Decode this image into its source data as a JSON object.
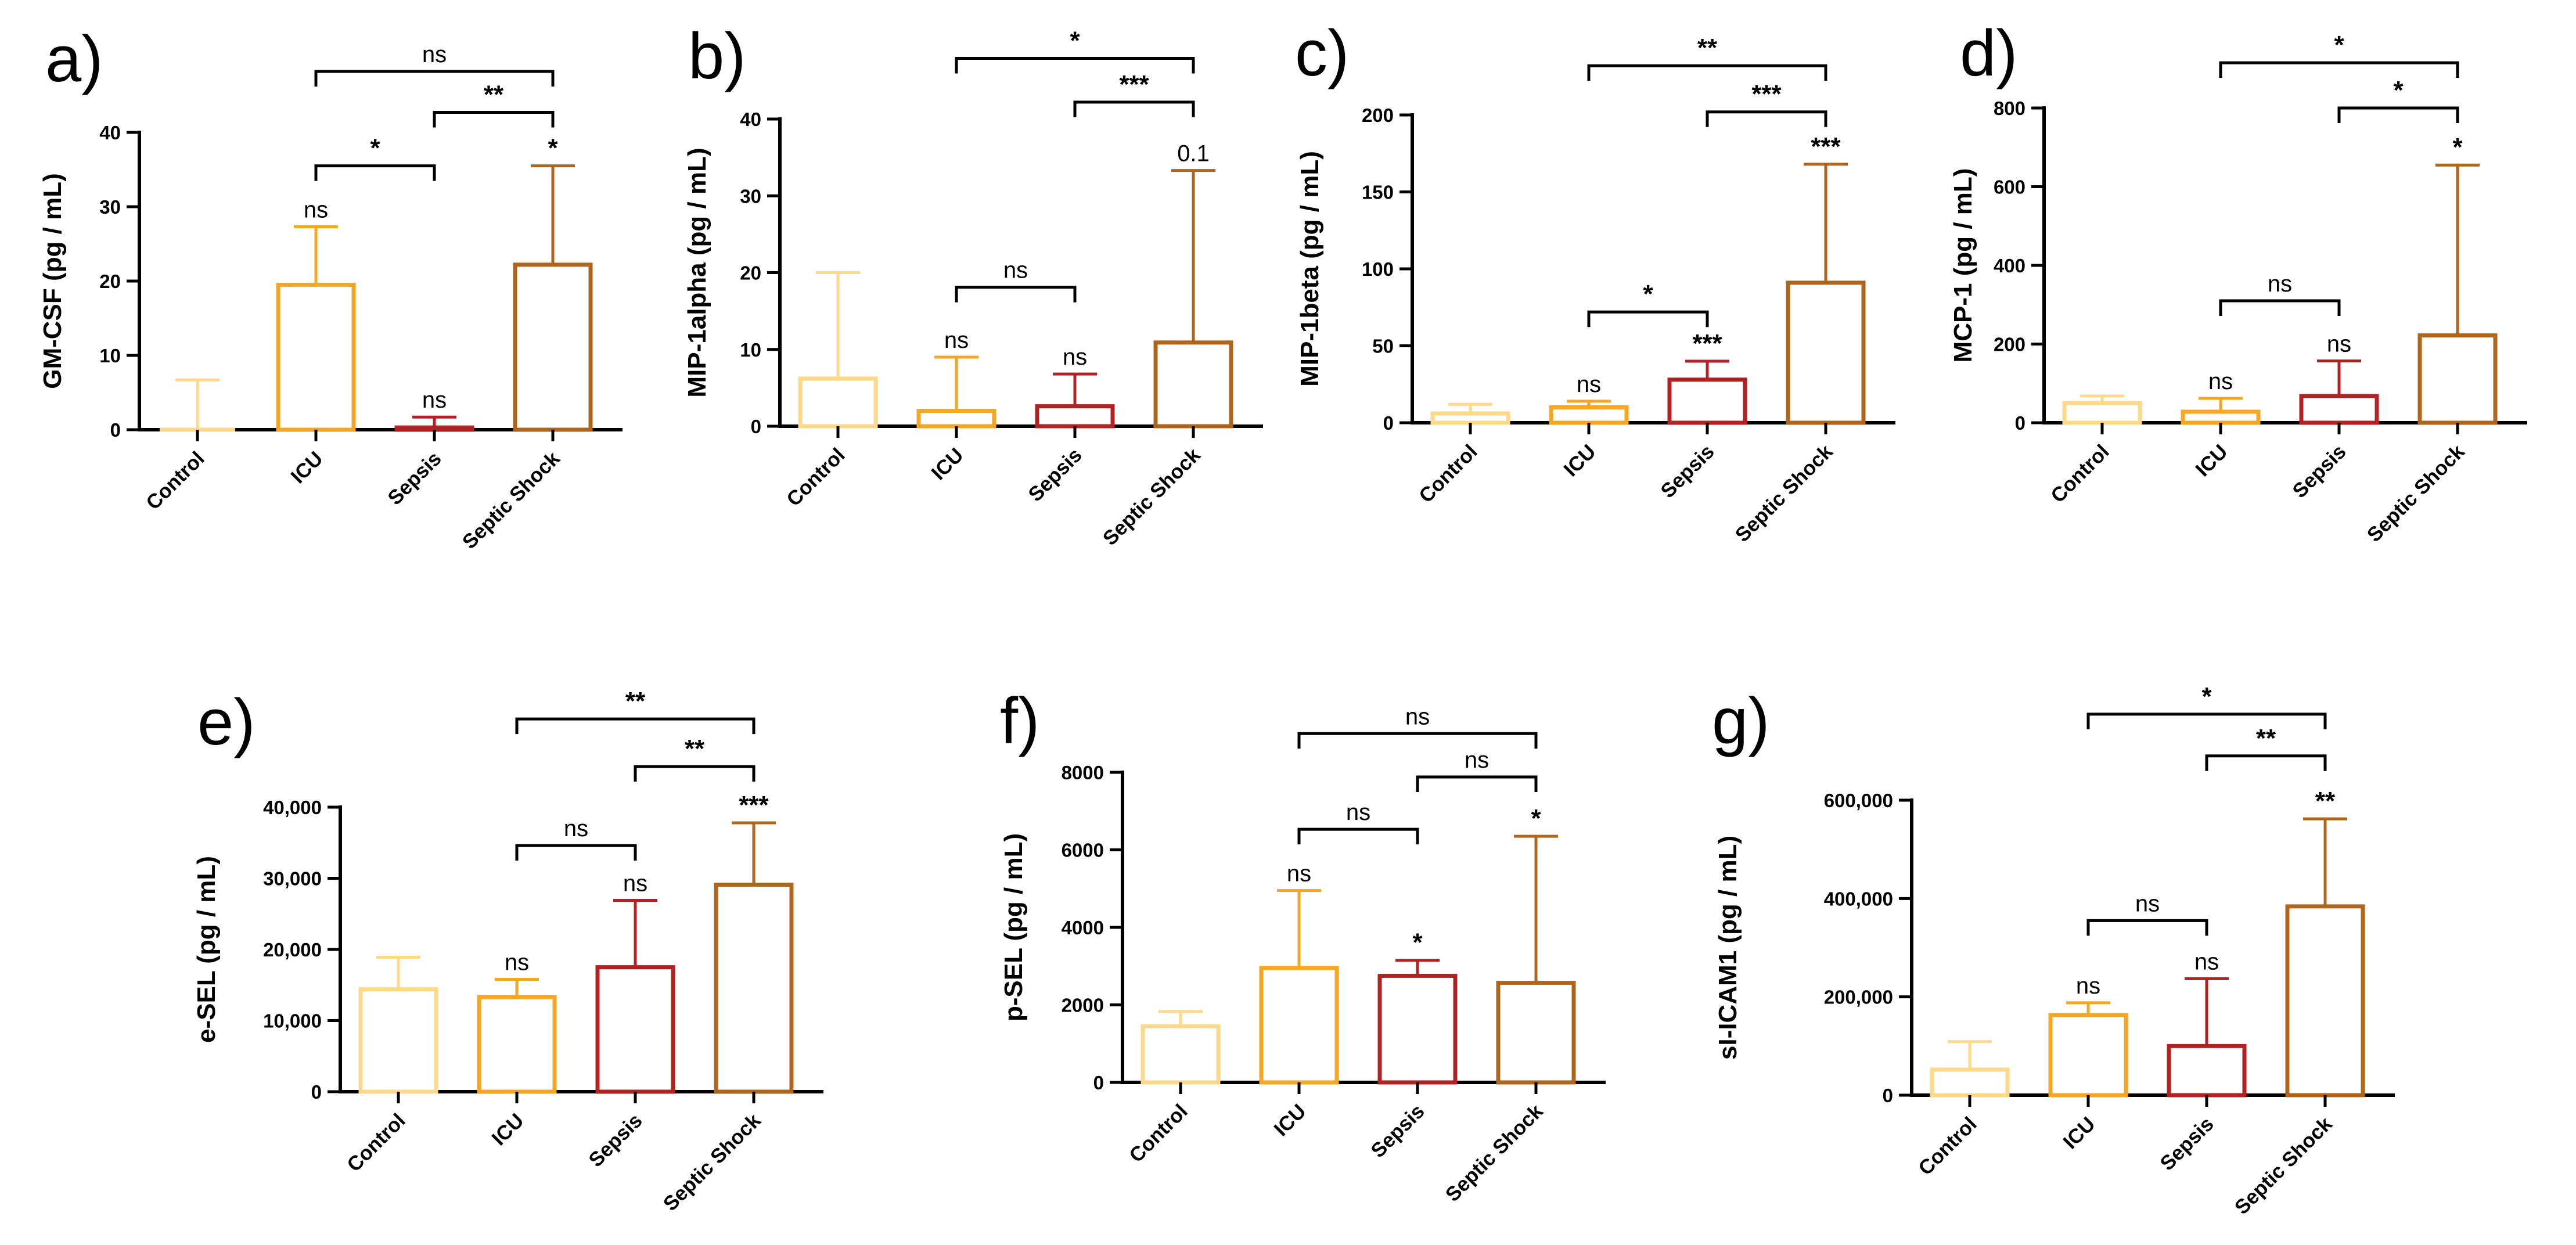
{
  "palette": {
    "Control": "#FFD98A",
    "ICU": "#F5A623",
    "Sepsis": "#B22222",
    "Septic Shock": "#B0651C"
  },
  "chart_data": [
    {
      "panel": "a)",
      "type": "bar",
      "ylabel": "GM-CSF (pg / mL)",
      "categories": [
        "Control",
        "ICU",
        "Sepsis",
        "Septic Shock"
      ],
      "values": [
        0,
        19.5,
        0.3,
        22.2
      ],
      "err": [
        6.7,
        27.3,
        1.7,
        35.5
      ],
      "ylim": [
        0,
        40
      ],
      "yticks": [
        0,
        10,
        20,
        30,
        40
      ],
      "tick_labels": [
        "0",
        "10",
        "20",
        "30",
        "40"
      ],
      "bar_labels": [
        "",
        "ns",
        "ns",
        "*"
      ],
      "brackets": [
        {
          "from": 1,
          "to": 2,
          "y": 35.5,
          "label": "*"
        },
        {
          "from": 2,
          "to": 3,
          "y": 42.7,
          "label": "**"
        },
        {
          "from": 1,
          "to": 3,
          "y": 48.2,
          "label": "ns"
        }
      ]
    },
    {
      "panel": "b)",
      "type": "bar",
      "ylabel": "MIP-1alpha (pg / mL)",
      "categories": [
        "Control",
        "ICU",
        "Sepsis",
        "Septic Shock"
      ],
      "values": [
        6.2,
        2.0,
        2.6,
        10.9
      ],
      "err": [
        20.0,
        9.0,
        6.8,
        33.3
      ],
      "ylim": [
        0,
        40
      ],
      "yticks": [
        0,
        10,
        20,
        30,
        40
      ],
      "tick_labels": [
        "0",
        "10",
        "20",
        "30",
        "40"
      ],
      "bar_labels": [
        "",
        "ns",
        "ns",
        "0.1"
      ],
      "brackets": [
        {
          "from": 1,
          "to": 2,
          "y": 18.1,
          "label": "ns"
        },
        {
          "from": 2,
          "to": 3,
          "y": 42.2,
          "label": "***"
        },
        {
          "from": 1,
          "to": 3,
          "y": 47.9,
          "label": "*"
        }
      ]
    },
    {
      "panel": "c)",
      "type": "bar",
      "ylabel": "MIP-1beta (pg / mL)",
      "categories": [
        "Control",
        "ICU",
        "Sepsis",
        "Septic Shock"
      ],
      "values": [
        6,
        10,
        28,
        91
      ],
      "err": [
        12,
        14,
        40,
        168
      ],
      "ylim": [
        0,
        200
      ],
      "yticks": [
        0,
        50,
        100,
        150,
        200
      ],
      "tick_labels": [
        "0",
        "50",
        "100",
        "150",
        "200"
      ],
      "bar_labels": [
        "",
        "ns",
        "***",
        "***"
      ],
      "brackets": [
        {
          "from": 1,
          "to": 2,
          "y": 72,
          "label": "*"
        },
        {
          "from": 2,
          "to": 3,
          "y": 202,
          "label": "***"
        },
        {
          "from": 1,
          "to": 3,
          "y": 232,
          "label": "**"
        }
      ]
    },
    {
      "panel": "d)",
      "type": "bar",
      "ylabel": "MCP-1 (pg / mL)",
      "categories": [
        "Control",
        "ICU",
        "Sepsis",
        "Septic Shock"
      ],
      "values": [
        50,
        28,
        68,
        222
      ],
      "err": [
        68,
        62,
        157,
        655
      ],
      "ylim": [
        0,
        800
      ],
      "yticks": [
        0,
        200,
        400,
        600,
        800
      ],
      "tick_labels": [
        "0",
        "200",
        "400",
        "600",
        "800"
      ],
      "bar_labels": [
        "",
        "ns",
        "ns",
        "*"
      ],
      "brackets": [
        {
          "from": 1,
          "to": 2,
          "y": 310,
          "label": "ns"
        },
        {
          "from": 2,
          "to": 3,
          "y": 800,
          "label": "*"
        },
        {
          "from": 1,
          "to": 3,
          "y": 915,
          "label": "*"
        }
      ]
    },
    {
      "panel": "e)",
      "type": "bar",
      "ylabel": "e-SEL (pg / mL)",
      "categories": [
        "Control",
        "ICU",
        "Sepsis",
        "Septic Shock"
      ],
      "values": [
        14400,
        13300,
        17500,
        29100
      ],
      "err": [
        18900,
        15800,
        26900,
        37800
      ],
      "ylim": [
        0,
        40000
      ],
      "yticks": [
        0,
        10000,
        20000,
        30000,
        40000
      ],
      "tick_labels": [
        "0",
        "10,000",
        "20,000",
        "30,000",
        "40,000"
      ],
      "bar_labels": [
        "",
        "ns",
        "ns",
        "***"
      ],
      "brackets": [
        {
          "from": 1,
          "to": 2,
          "y": 34600,
          "label": "ns"
        },
        {
          "from": 2,
          "to": 3,
          "y": 45700,
          "label": "**"
        },
        {
          "from": 1,
          "to": 3,
          "y": 52400,
          "label": "**"
        }
      ]
    },
    {
      "panel": "f)",
      "type": "bar",
      "ylabel": "p-SEL (pg / mL)",
      "categories": [
        "Control",
        "ICU",
        "Sepsis",
        "Septic Shock"
      ],
      "values": [
        1450,
        2950,
        2750,
        2570
      ],
      "err": [
        1830,
        4950,
        3150,
        6350
      ],
      "ylim": [
        0,
        8000
      ],
      "yticks": [
        0,
        2000,
        4000,
        6000,
        8000
      ],
      "tick_labels": [
        "0",
        "2000",
        "4000",
        "6000",
        "8000"
      ],
      "bar_labels": [
        "",
        "ns",
        "*",
        "*"
      ],
      "brackets": [
        {
          "from": 1,
          "to": 2,
          "y": 6530,
          "label": "ns"
        },
        {
          "from": 2,
          "to": 3,
          "y": 7880,
          "label": "ns"
        },
        {
          "from": 1,
          "to": 3,
          "y": 9000,
          "label": "ns"
        }
      ]
    },
    {
      "panel": "g)",
      "type": "bar",
      "ylabel": "sI-ICAM1 (pg / mL)",
      "categories": [
        "Control",
        "ICU",
        "Sepsis",
        "Septic Shock"
      ],
      "values": [
        52000,
        163000,
        100000,
        384000
      ],
      "err": [
        109000,
        188000,
        237000,
        562000
      ],
      "ylim": [
        0,
        600000
      ],
      "yticks": [
        0,
        200000,
        400000,
        600000
      ],
      "tick_labels": [
        "0",
        "200,000",
        "400,000",
        "600,000"
      ],
      "bar_labels": [
        "",
        "ns",
        "ns",
        "**"
      ],
      "brackets": [
        {
          "from": 1,
          "to": 2,
          "y": 355000,
          "label": "ns"
        },
        {
          "from": 2,
          "to": 3,
          "y": 690000,
          "label": "**"
        },
        {
          "from": 1,
          "to": 3,
          "y": 775000,
          "label": "*"
        }
      ]
    }
  ]
}
